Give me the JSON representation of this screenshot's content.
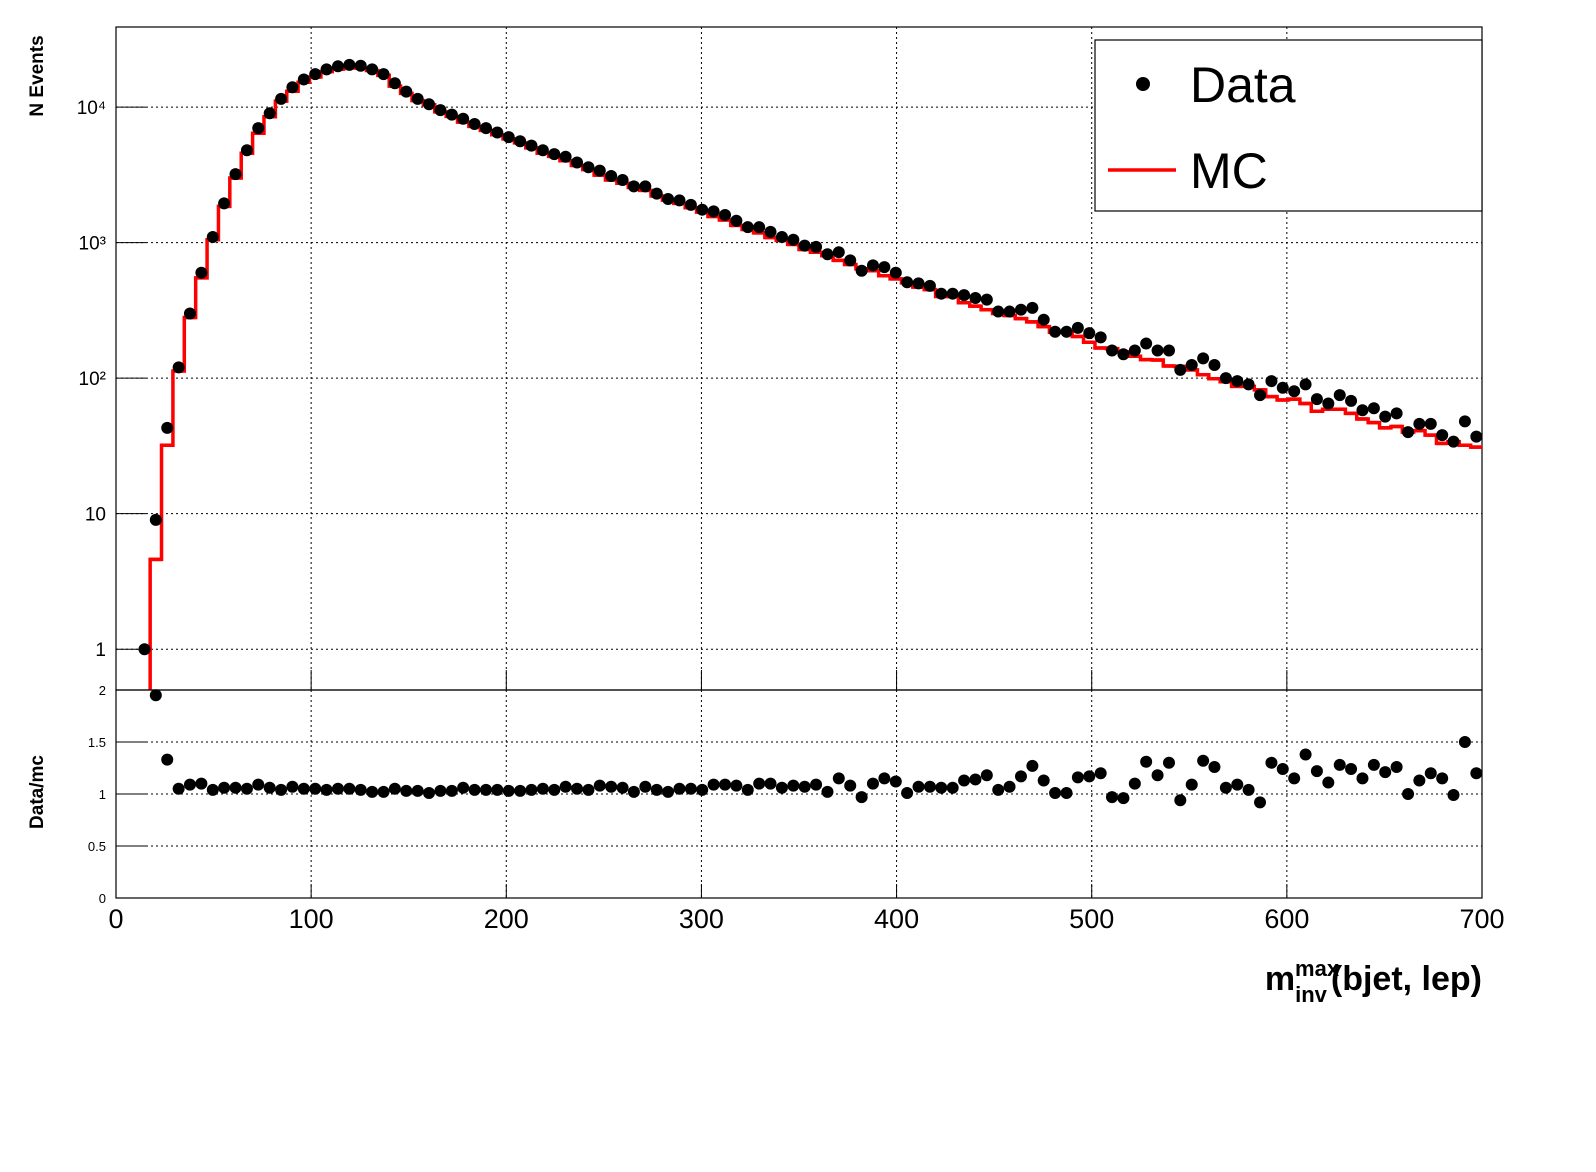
{
  "chart_data": [
    {
      "type": "step",
      "y_label": "N Events",
      "log_y": true,
      "grid": true,
      "legend": "top-right",
      "xlim": [
        0,
        700
      ],
      "xticks": [
        0,
        100,
        200,
        300,
        400,
        500,
        600,
        700
      ],
      "show_xtick_labels": false,
      "ylim": [
        0.5,
        39000
      ],
      "yticks": [
        1,
        10,
        {
          "value": 100,
          "label": "10²"
        },
        {
          "value": 1000,
          "label": "10³"
        },
        {
          "value": 10000,
          "label": "10⁴"
        }
      ],
      "x": [
        14.6,
        20.4,
        26.25,
        32.1,
        37.9,
        43.75,
        49.6,
        55.4,
        61.25,
        67.1,
        72.9,
        78.75,
        84.6,
        90.4,
        96.25,
        102.1,
        107.9,
        113.75,
        119.6,
        125.4,
        131.25,
        137.1,
        142.9,
        148.75,
        154.6,
        160.4,
        166.25,
        172.1,
        177.9,
        183.75,
        189.6,
        195.4,
        201.25,
        207.1,
        212.9,
        218.75,
        224.6,
        230.4,
        236.25,
        242.1,
        247.9,
        253.75,
        259.6,
        265.4,
        271.25,
        277.1,
        282.9,
        288.75,
        294.6,
        300.4,
        306.25,
        312.1,
        317.9,
        323.75,
        329.6,
        335.4,
        341.25,
        347.1,
        352.9,
        358.75,
        364.6,
        370.4,
        376.25,
        382.1,
        387.9,
        393.75,
        399.6,
        405.4,
        411.25,
        417.1,
        422.9,
        428.75,
        434.6,
        440.4,
        446.25,
        452.1,
        457.9,
        463.75,
        469.6,
        475.4,
        481.25,
        487.1,
        492.9,
        498.75,
        504.6,
        510.4,
        516.25,
        522.1,
        527.9,
        533.75,
        539.6,
        545.4,
        551.25,
        557.1,
        562.9,
        568.75,
        574.6,
        580.4,
        586.25,
        592.1,
        597.9,
        603.75,
        609.6,
        615.4,
        621.25,
        627.1,
        632.9,
        638.75,
        644.6,
        650.4,
        656.25,
        662.1,
        667.9,
        673.75,
        679.6,
        685.4,
        691.25,
        697.1
      ],
      "series": [
        {
          "name": "Data",
          "color": "#000000",
          "marker": "circle",
          "values": [
            1,
            9,
            43,
            120,
            300,
            600,
            1100,
            1950,
            3200,
            4800,
            7000,
            9000,
            11500,
            14000,
            16000,
            17500,
            19000,
            20000,
            20500,
            20200,
            19000,
            17500,
            15000,
            13000,
            11500,
            10500,
            9500,
            8800,
            8200,
            7500,
            7000,
            6500,
            6000,
            5600,
            5200,
            4800,
            4500,
            4300,
            3900,
            3600,
            3400,
            3100,
            2900,
            2600,
            2600,
            2300,
            2100,
            2050,
            1900,
            1750,
            1700,
            1600,
            1450,
            1300,
            1300,
            1200,
            1100,
            1050,
            950,
            930,
            820,
            850,
            740,
            620,
            680,
            660,
            600,
            510,
            500,
            480,
            420,
            420,
            410,
            390,
            380,
            310,
            310,
            320,
            330,
            270,
            220,
            220,
            235,
            215,
            200,
            160,
            150,
            160,
            180,
            160,
            160,
            115,
            125,
            140,
            125,
            100,
            95,
            90,
            75,
            95,
            85,
            80,
            90,
            70,
            65,
            75,
            68,
            58,
            60,
            52,
            55,
            40,
            46,
            46,
            38,
            34,
            48,
            37
          ]
        },
        {
          "name": "MC",
          "color": "#ff0000",
          "marker": "step",
          "values": [
            null,
            4.6,
            32,
            113,
            280,
            550,
            1050,
            1850,
            3000,
            4570,
            6420,
            8490,
            11060,
            13080,
            15240,
            16670,
            18270,
            19050,
            19520,
            19420,
            18630,
            17160,
            14290,
            12620,
            11170,
            10400,
            9220,
            8540,
            7740,
            7210,
            6730,
            6250,
            5830,
            5440,
            5000,
            4570,
            4330,
            4020,
            3710,
            3460,
            3150,
            2900,
            2740,
            2550,
            2430,
            2210,
            2060,
            1950,
            1810,
            1680,
            1560,
            1470,
            1340,
            1250,
            1180,
            1090,
            1040,
            970,
            890,
            850,
            800,
            740,
            690,
            640,
            620,
            570,
            540,
            505,
            470,
            450,
            400,
            400,
            360,
            340,
            320,
            300,
            290,
            275,
            260,
            240,
            218,
            218,
            203,
            184,
            167,
            165,
            156,
            145,
            137,
            136,
            123,
            122,
            115,
            106,
            99,
            94,
            87,
            87,
            82,
            73,
            69,
            70,
            65,
            57,
            59,
            59,
            55,
            50,
            47,
            43,
            44,
            40,
            41,
            38,
            33,
            34,
            32,
            31
          ]
        }
      ]
    },
    {
      "type": "scatter",
      "y_label": "Data/mc",
      "grid": true,
      "x_label": {
        "base": "m",
        "sup": "max",
        "sub": "inv",
        "rest": "(bjet, lep)"
      },
      "xlim": [
        0,
        700
      ],
      "xticks": [
        0,
        100,
        200,
        300,
        400,
        500,
        600,
        700
      ],
      "show_xtick_labels": true,
      "ylim": [
        0,
        2
      ],
      "yticks": [
        0,
        0.5,
        1,
        1.5,
        2
      ],
      "x": [
        20.4,
        26.25,
        32.1,
        37.9,
        43.75,
        49.6,
        55.4,
        61.25,
        67.1,
        72.9,
        78.75,
        84.6,
        90.4,
        96.25,
        102.1,
        107.9,
        113.75,
        119.6,
        125.4,
        131.25,
        137.1,
        142.9,
        148.75,
        154.6,
        160.4,
        166.25,
        172.1,
        177.9,
        183.75,
        189.6,
        195.4,
        201.25,
        207.1,
        212.9,
        218.75,
        224.6,
        230.4,
        236.25,
        242.1,
        247.9,
        253.75,
        259.6,
        265.4,
        271.25,
        277.1,
        282.9,
        288.75,
        294.6,
        300.4,
        306.25,
        312.1,
        317.9,
        323.75,
        329.6,
        335.4,
        341.25,
        347.1,
        352.9,
        358.75,
        364.6,
        370.4,
        376.25,
        382.1,
        387.9,
        393.75,
        399.6,
        405.4,
        411.25,
        417.1,
        422.9,
        428.75,
        434.6,
        440.4,
        446.25,
        452.1,
        457.9,
        463.75,
        469.6,
        475.4,
        481.25,
        487.1,
        492.9,
        498.75,
        504.6,
        510.4,
        516.25,
        522.1,
        527.9,
        533.75,
        539.6,
        545.4,
        551.25,
        557.1,
        562.9,
        568.75,
        574.6,
        580.4,
        586.25,
        592.1,
        597.9,
        603.75,
        609.6,
        615.4,
        621.25,
        627.1,
        632.9,
        638.75,
        644.6,
        650.4,
        656.25,
        662.1,
        667.9,
        673.75,
        679.6,
        685.4,
        691.25,
        697.1
      ],
      "color": "#000000",
      "values": [
        1.95,
        1.33,
        1.05,
        1.09,
        1.1,
        1.04,
        1.06,
        1.06,
        1.05,
        1.09,
        1.06,
        1.04,
        1.07,
        1.05,
        1.05,
        1.04,
        1.05,
        1.05,
        1.04,
        1.02,
        1.02,
        1.05,
        1.03,
        1.03,
        1.01,
        1.03,
        1.03,
        1.06,
        1.04,
        1.04,
        1.04,
        1.03,
        1.03,
        1.04,
        1.05,
        1.04,
        1.07,
        1.05,
        1.04,
        1.08,
        1.07,
        1.06,
        1.02,
        1.07,
        1.04,
        1.02,
        1.05,
        1.05,
        1.04,
        1.09,
        1.09,
        1.08,
        1.04,
        1.1,
        1.1,
        1.06,
        1.08,
        1.07,
        1.09,
        1.02,
        1.15,
        1.08,
        0.97,
        1.1,
        1.15,
        1.12,
        1.01,
        1.07,
        1.07,
        1.06,
        1.06,
        1.13,
        1.14,
        1.18,
        1.04,
        1.07,
        1.17,
        1.27,
        1.13,
        1.01,
        1.01,
        1.16,
        1.17,
        1.2,
        0.97,
        0.96,
        1.1,
        1.31,
        1.18,
        1.3,
        0.94,
        1.09,
        1.32,
        1.26,
        1.06,
        1.09,
        1.04,
        0.92,
        1.3,
        1.24,
        1.15,
        1.38,
        1.22,
        1.11,
        1.28,
        1.24,
        1.15,
        1.28,
        1.21,
        1.26,
        1.0,
        1.13,
        1.2,
        1.15,
        0.99,
        1.5,
        1.2
      ]
    }
  ]
}
